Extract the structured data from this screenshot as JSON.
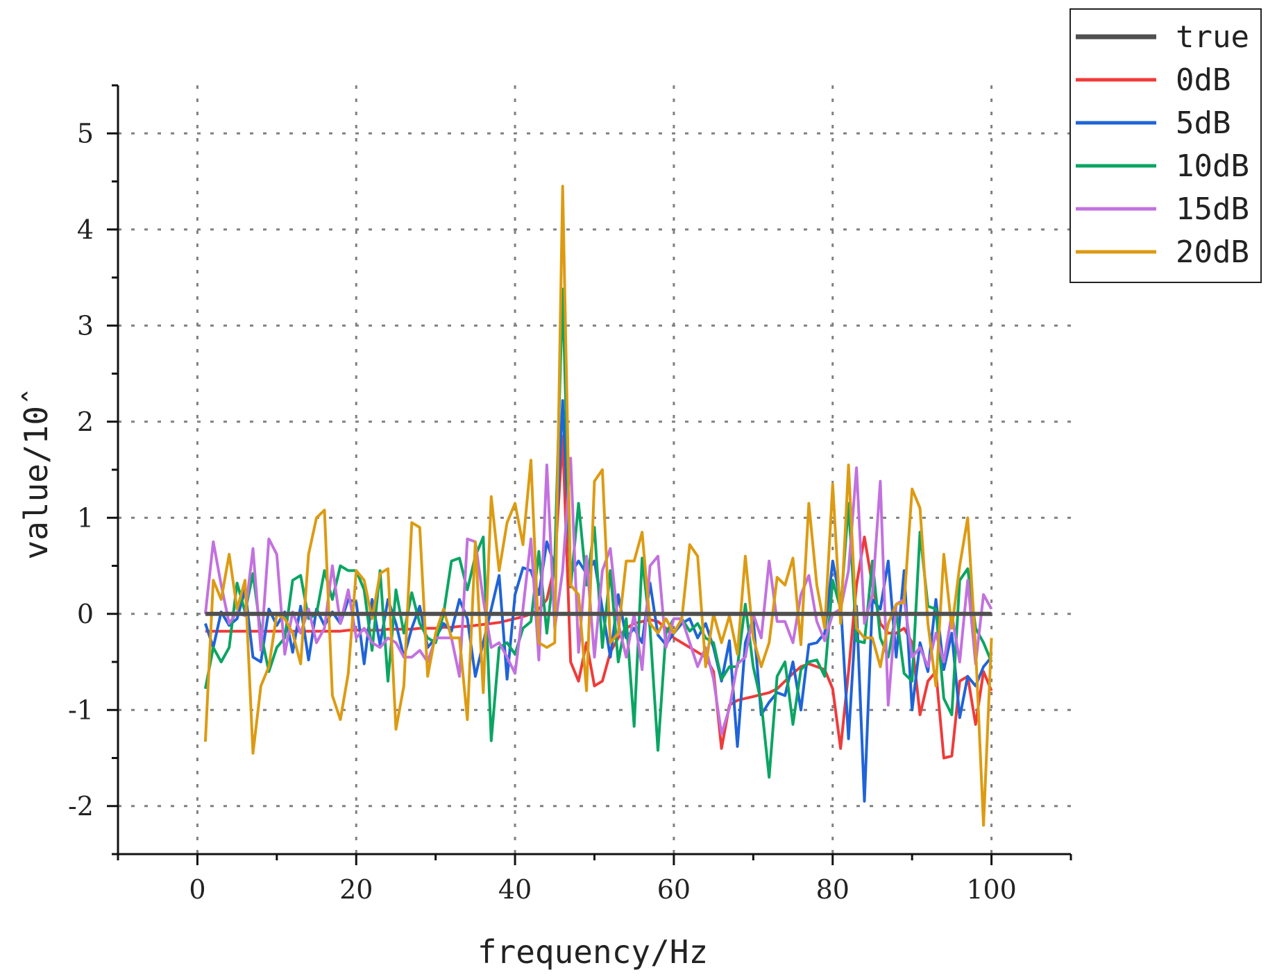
{
  "chart_data": {
    "type": "line",
    "title": "",
    "xlabel": "frequency/Hz",
    "ylabel": "value/10ˆ",
    "xlim": [
      -10,
      110
    ],
    "ylim": [
      -2.5,
      5.5
    ],
    "xticks": [
      0,
      20,
      40,
      60,
      80,
      100
    ],
    "xtick_labels": [
      "0",
      "20",
      "40",
      "60",
      "80",
      "100"
    ],
    "yticks": [
      -2,
      -1,
      0,
      1,
      2,
      3,
      4,
      5
    ],
    "ytick_labels": [
      "-2",
      "-1",
      "0",
      "1",
      "2",
      "3",
      "4",
      "5"
    ],
    "grid": true,
    "legend_position": "top-right",
    "x": [
      1,
      2,
      3,
      4,
      5,
      6,
      7,
      8,
      9,
      10,
      11,
      12,
      13,
      14,
      15,
      16,
      17,
      18,
      19,
      20,
      21,
      22,
      23,
      24,
      25,
      26,
      27,
      28,
      29,
      30,
      31,
      32,
      33,
      34,
      35,
      36,
      37,
      38,
      39,
      40,
      41,
      42,
      43,
      44,
      45,
      46,
      47,
      48,
      49,
      50,
      51,
      52,
      53,
      54,
      55,
      56,
      57,
      58,
      59,
      60,
      61,
      62,
      63,
      64,
      65,
      66,
      67,
      68,
      69,
      70,
      71,
      72,
      73,
      74,
      75,
      76,
      77,
      78,
      79,
      80,
      81,
      82,
      83,
      84,
      85,
      86,
      87,
      88,
      89,
      90,
      91,
      92,
      93,
      94,
      95,
      96,
      97,
      98,
      99,
      100
    ],
    "series": [
      {
        "name": "true",
        "color": "#505050",
        "width": 6,
        "values": [
          0,
          0,
          0,
          0,
          0,
          0,
          0,
          0,
          0,
          0,
          0,
          0,
          0,
          0,
          0,
          0,
          0,
          0,
          0,
          0,
          0,
          0,
          0,
          0,
          0,
          0,
          0,
          0,
          0,
          0,
          0,
          0,
          0,
          0,
          0,
          0,
          0,
          0,
          0,
          0,
          0,
          0,
          0,
          0,
          0,
          0,
          0,
          0,
          0,
          0,
          0,
          0,
          0,
          0,
          0,
          0,
          0,
          0,
          0,
          0,
          0,
          0,
          0,
          0,
          0,
          0,
          0,
          0,
          0,
          0,
          0,
          0,
          0,
          0,
          0,
          0,
          0,
          0,
          0,
          0,
          0,
          0,
          0,
          0,
          0,
          0,
          0,
          0,
          0,
          0,
          0,
          0,
          0,
          0,
          0,
          0,
          0,
          0,
          0,
          0
        ]
      },
      {
        "name": "0dB",
        "color": "#f03a3a",
        "width": 4,
        "values": [
          -0.18,
          -0.18,
          -0.18,
          -0.18,
          -0.18,
          -0.18,
          -0.18,
          -0.18,
          -0.18,
          -0.18,
          -0.18,
          -0.18,
          -0.18,
          -0.18,
          -0.18,
          -0.18,
          -0.18,
          -0.18,
          -0.17,
          -0.17,
          -0.17,
          -0.17,
          -0.17,
          -0.16,
          -0.16,
          -0.16,
          -0.16,
          -0.15,
          -0.15,
          -0.15,
          -0.14,
          -0.14,
          -0.13,
          -0.13,
          -0.12,
          -0.11,
          -0.1,
          -0.09,
          -0.07,
          -0.05,
          -0.03,
          0.0,
          0.05,
          0.15,
          0.5,
          1.85,
          -0.5,
          -0.7,
          -0.3,
          -0.75,
          -0.7,
          -0.4,
          -0.25,
          -0.15,
          -0.1,
          -0.08,
          -0.06,
          -0.08,
          -0.15,
          -0.25,
          -0.3,
          -0.35,
          -0.4,
          -0.45,
          -0.6,
          -1.4,
          -0.95,
          -0.9,
          -0.88,
          -0.86,
          -0.84,
          -0.82,
          -0.78,
          -0.7,
          -0.62,
          -0.55,
          -0.52,
          -0.55,
          -0.58,
          -0.78,
          -1.4,
          -0.6,
          0.3,
          0.8,
          0.3,
          -0.1,
          -0.2,
          -0.2,
          -0.15,
          -0.3,
          -1.05,
          -0.7,
          -0.6,
          -1.5,
          -1.48,
          -0.7,
          -0.65,
          -1.15,
          -0.6,
          -0.8
        ]
      },
      {
        "name": "5dB",
        "color": "#1f64d8",
        "width": 4,
        "values": [
          -0.1,
          -0.35,
          0.02,
          -0.12,
          -0.05,
          0.25,
          -0.45,
          -0.5,
          0.05,
          -0.12,
          0.02,
          -0.4,
          0.08,
          -0.48,
          0.05,
          -0.12,
          0.02,
          -0.1,
          0.15,
          0.12,
          -0.52,
          0.15,
          -0.32,
          0.15,
          -0.1,
          -0.45,
          -0.15,
          0.08,
          -0.35,
          -0.25,
          -0.1,
          -0.18,
          0.15,
          -0.05,
          -0.65,
          -0.3,
          0.05,
          0.4,
          -0.68,
          0.2,
          0.48,
          0.45,
          0.2,
          0.75,
          0.5,
          2.22,
          0.42,
          0.55,
          0.42,
          0.55,
          0.05,
          -0.45,
          0.2,
          -0.25,
          -0.15,
          -0.3,
          0.32,
          -0.22,
          -0.32,
          -0.2,
          -0.1,
          -0.05,
          -0.25,
          -0.1,
          -0.35,
          -0.7,
          -0.28,
          -1.38,
          -0.3,
          -0.05,
          -1.05,
          -0.92,
          -0.82,
          -0.85,
          -0.5,
          -1.0,
          -0.32,
          -0.3,
          -0.2,
          0.55,
          0.12,
          -1.3,
          0.08,
          -1.95,
          0.15,
          0.05,
          0.55,
          -0.45,
          0.45,
          -1.0,
          -0.3,
          -0.6,
          0.15,
          -0.58,
          -0.2,
          -1.08,
          -0.65,
          -0.75,
          -0.55,
          -0.45
        ]
      },
      {
        "name": "10dB",
        "color": "#0aa563",
        "width": 4,
        "values": [
          -0.78,
          -0.35,
          -0.5,
          -0.35,
          0.32,
          0.02,
          0.42,
          -0.2,
          -0.6,
          -0.35,
          -0.25,
          0.35,
          0.4,
          -0.05,
          0.0,
          0.45,
          0.15,
          0.5,
          0.45,
          0.45,
          0.25,
          -0.38,
          0.45,
          -0.7,
          0.25,
          -0.2,
          0.22,
          -0.1,
          -0.25,
          -0.3,
          0.0,
          0.55,
          0.58,
          0.25,
          0.6,
          0.8,
          -1.32,
          -0.35,
          -0.3,
          -0.42,
          -0.15,
          -0.08,
          0.65,
          -0.2,
          0.55,
          3.38,
          0.28,
          1.15,
          0.3,
          0.9,
          -0.35,
          0.45,
          -0.5,
          -0.05,
          -1.17,
          0.58,
          -0.15,
          -1.42,
          -0.2,
          -0.05,
          -0.05,
          -0.18,
          -0.1,
          -0.25,
          -0.3,
          -0.68,
          -0.55,
          -0.55,
          0.1,
          -0.55,
          -0.92,
          -1.7,
          -0.65,
          -0.5,
          -1.15,
          -0.58,
          -0.5,
          -0.48,
          -0.65,
          0.35,
          0.05,
          1.15,
          -0.28,
          -0.3,
          0.55,
          -0.25,
          -0.45,
          0.02,
          -0.62,
          -0.7,
          0.85,
          0.08,
          0.05,
          -0.88,
          -1.05,
          0.35,
          0.47,
          -0.15,
          -0.3,
          -0.5
        ]
      },
      {
        "name": "15dB",
        "color": "#c271df",
        "width": 4,
        "values": [
          0.0,
          0.75,
          0.3,
          -0.1,
          0.02,
          -0.02,
          0.68,
          -0.38,
          0.78,
          0.62,
          -0.42,
          0.02,
          -0.2,
          0.05,
          -0.3,
          -0.15,
          0.5,
          -0.1,
          0.25,
          -0.25,
          -0.15,
          -0.3,
          -0.35,
          -0.25,
          -0.3,
          -0.45,
          -0.45,
          -0.38,
          -0.5,
          -0.25,
          -0.25,
          -0.25,
          -0.65,
          0.78,
          0.75,
          0.15,
          -0.35,
          -0.3,
          -0.45,
          -0.62,
          0.05,
          0.78,
          -0.48,
          1.55,
          -0.15,
          0.45,
          1.62,
          -0.4,
          0.6,
          -0.45,
          0.45,
          0.68,
          -0.1,
          -0.45,
          0.0,
          -0.58,
          0.5,
          0.6,
          -0.35,
          -0.05,
          -0.05,
          -0.3,
          -0.55,
          -0.35,
          -0.68,
          -1.25,
          -0.98,
          -0.52,
          -0.45,
          0.0,
          -0.25,
          0.55,
          -0.08,
          -0.08,
          -0.3,
          0.2,
          0.4,
          -0.08,
          -0.28,
          0.0,
          0.05,
          0.45,
          1.52,
          -0.1,
          0.2,
          1.38,
          -0.95,
          0.1,
          0.15,
          -0.45,
          -0.35,
          -0.55,
          -0.2,
          -0.5,
          0.0,
          -0.5,
          0.35,
          -0.52,
          0.2,
          0.05
        ]
      },
      {
        "name": "20dB",
        "color": "#dc9b12",
        "width": 4,
        "values": [
          -1.33,
          0.35,
          0.15,
          0.62,
          0.05,
          0.35,
          -1.45,
          -0.75,
          -0.55,
          0.0,
          -0.05,
          -0.2,
          -0.52,
          0.62,
          1.0,
          1.08,
          -0.85,
          -1.1,
          -0.62,
          0.45,
          0.35,
          -0.05,
          0.42,
          0.47,
          -1.2,
          -0.75,
          0.95,
          0.9,
          -0.65,
          -0.2,
          0.05,
          -0.25,
          -0.25,
          -1.1,
          0.75,
          -0.82,
          1.22,
          0.45,
          0.95,
          1.15,
          0.72,
          1.6,
          -0.3,
          -0.35,
          -0.3,
          4.45,
          0.3,
          0.2,
          -0.8,
          1.38,
          1.5,
          -0.3,
          -0.2,
          0.55,
          0.55,
          0.85,
          -0.1,
          -0.2,
          -0.05,
          -0.2,
          -0.05,
          0.72,
          0.6,
          -0.55,
          0.0,
          -0.3,
          -0.02,
          -0.42,
          0.6,
          -0.25,
          -0.55,
          -0.3,
          0.38,
          0.3,
          0.58,
          -0.32,
          1.15,
          0.3,
          -0.15,
          1.35,
          -0.1,
          1.55,
          -0.15,
          -0.25,
          -0.25,
          -0.55,
          -0.1,
          0.1,
          0.12,
          1.3,
          1.1,
          -0.1,
          -0.75,
          0.62,
          -0.15,
          0.5,
          1.0,
          -0.35,
          -2.2,
          -0.25
        ]
      }
    ]
  }
}
